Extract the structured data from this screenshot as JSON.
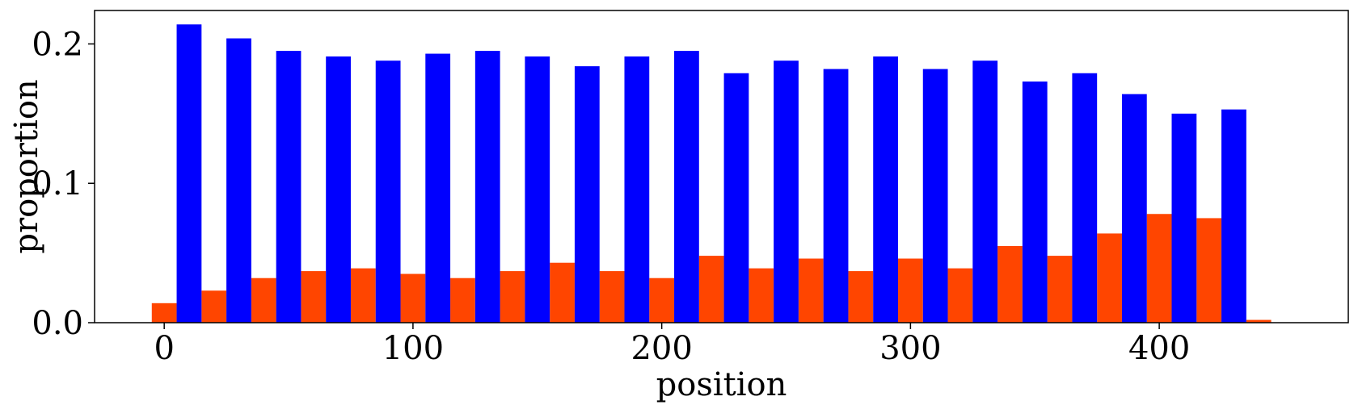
{
  "chart_data": {
    "type": "bar",
    "title": "",
    "xlabel": "position",
    "ylabel": "proportion",
    "xlim": [
      -28,
      476
    ],
    "ylim": [
      0,
      0.224
    ],
    "xticks": [
      0,
      100,
      200,
      300,
      400
    ],
    "xtick_labels": [
      "0",
      "100",
      "200",
      "300",
      "400"
    ],
    "yticks": [
      0.0,
      0.1,
      0.2
    ],
    "ytick_labels": [
      "0.0",
      "0.1",
      "0.2"
    ],
    "grid": false,
    "legend": "none",
    "bar_width": 10,
    "series": [
      {
        "color": "#ff4500",
        "x": [
          0,
          20,
          40,
          60,
          80,
          100,
          120,
          140,
          160,
          180,
          200,
          220,
          240,
          260,
          280,
          300,
          320,
          340,
          360,
          380,
          400,
          420,
          440
        ],
        "values": [
          0.014,
          0.023,
          0.032,
          0.037,
          0.039,
          0.035,
          0.032,
          0.037,
          0.043,
          0.037,
          0.032,
          0.048,
          0.039,
          0.046,
          0.037,
          0.046,
          0.039,
          0.055,
          0.048,
          0.064,
          0.078,
          0.075,
          0.002
        ]
      },
      {
        "color": "#0000ff",
        "x": [
          10,
          30,
          50,
          70,
          90,
          110,
          130,
          150,
          170,
          190,
          210,
          230,
          250,
          270,
          290,
          310,
          330,
          350,
          370,
          390,
          410,
          430
        ],
        "values": [
          0.214,
          0.204,
          0.195,
          0.191,
          0.188,
          0.193,
          0.195,
          0.191,
          0.184,
          0.191,
          0.195,
          0.179,
          0.188,
          0.182,
          0.191,
          0.182,
          0.188,
          0.173,
          0.179,
          0.164,
          0.15,
          0.153
        ]
      }
    ]
  }
}
